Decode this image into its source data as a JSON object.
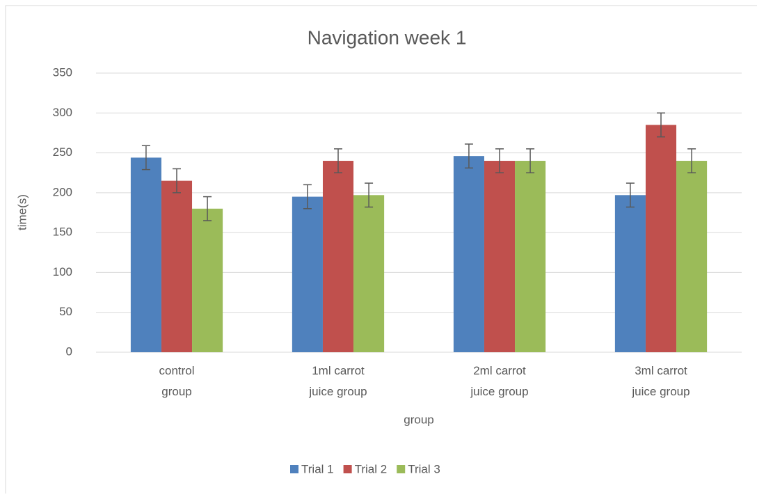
{
  "chart_data": {
    "type": "bar",
    "title": "Navigation week 1",
    "x_label": "group",
    "y_label": "time(s)",
    "categories": [
      "control group",
      "1ml carrot juice group",
      "2ml carrot juice group",
      "3ml carrot juice group"
    ],
    "series": [
      {
        "name": "Trial 1",
        "color": "#4f81bd",
        "values": [
          244,
          195,
          246,
          197
        ],
        "errors": [
          15,
          15,
          15,
          15
        ]
      },
      {
        "name": "Trial 2",
        "color": "#c0504d",
        "values": [
          215,
          240,
          240,
          285
        ],
        "errors": [
          15,
          15,
          15,
          15
        ]
      },
      {
        "name": "Trial 3",
        "color": "#9bbb59",
        "values": [
          180,
          197,
          240,
          240
        ],
        "errors": [
          15,
          15,
          15,
          15
        ]
      }
    ],
    "ylim": [
      0,
      350
    ],
    "yticks": [
      0,
      50,
      100,
      150,
      200,
      250,
      300,
      350
    ],
    "grid": true,
    "legend": "bottom"
  }
}
